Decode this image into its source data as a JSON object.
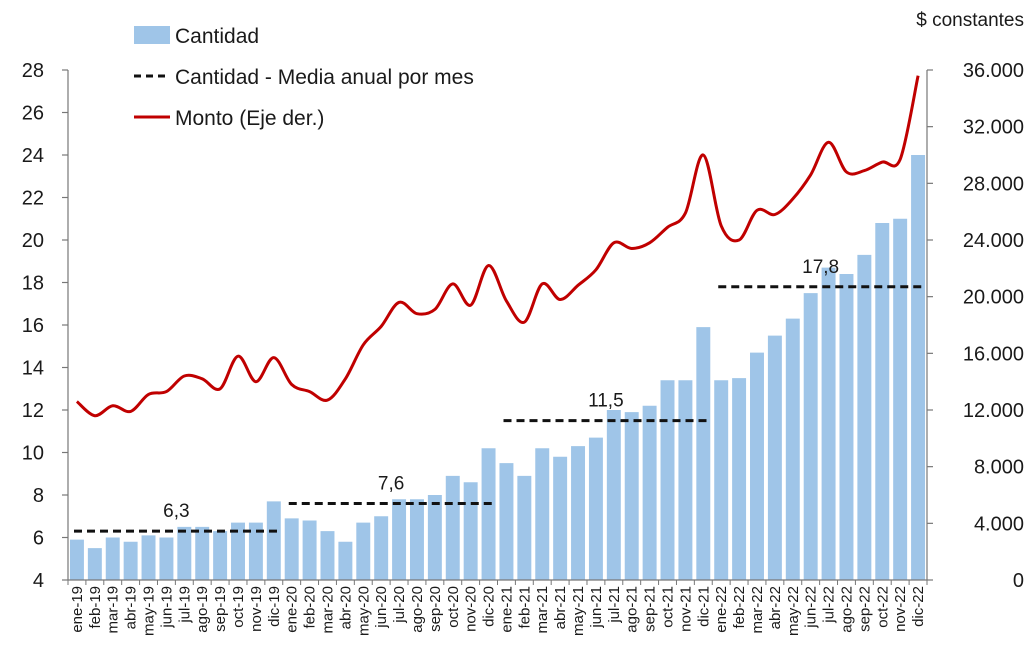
{
  "chart_data": {
    "type": "bar+line",
    "right_axis_title": "$ constantes",
    "legend": {
      "bars": "Cantidad",
      "dashed": "Cantidad - Media anual por mes",
      "line": "Monto (Eje der.)"
    },
    "colors": {
      "bars": "#9fc5e8",
      "line": "#c00000",
      "dashed": "#111111"
    },
    "left_axis": {
      "min": 4,
      "max": 28,
      "ticks": [
        "4",
        "6",
        "8",
        "10",
        "12",
        "14",
        "16",
        "18",
        "20",
        "22",
        "24",
        "26",
        "28"
      ],
      "tick_values": [
        4,
        6,
        8,
        10,
        12,
        14,
        16,
        18,
        20,
        22,
        24,
        26,
        28
      ]
    },
    "right_axis": {
      "min": 0,
      "max": 36000,
      "ticks": [
        "0",
        "4.000",
        "8.000",
        "12.000",
        "16.000",
        "20.000",
        "24.000",
        "28.000",
        "32.000",
        "36.000"
      ],
      "tick_values": [
        0,
        4000,
        8000,
        12000,
        16000,
        20000,
        24000,
        28000,
        32000,
        36000
      ]
    },
    "categories": [
      "ene-19",
      "feb-19",
      "mar-19",
      "abr-19",
      "may-19",
      "jun-19",
      "jul-19",
      "ago-19",
      "sep-19",
      "oct-19",
      "nov-19",
      "dic-19",
      "ene-20",
      "feb-20",
      "mar-20",
      "abr-20",
      "may-20",
      "jun-20",
      "jul-20",
      "ago-20",
      "sep-20",
      "oct-20",
      "nov-20",
      "dic-20",
      "ene-21",
      "feb-21",
      "mar-21",
      "abr-21",
      "may-21",
      "jun-21",
      "jul-21",
      "ago-21",
      "sep-21",
      "oct-21",
      "nov-21",
      "dic-21",
      "ene-22",
      "feb-22",
      "mar-22",
      "abr-22",
      "may-22",
      "jun-22",
      "jul-22",
      "ago-22",
      "sep-22",
      "oct-22",
      "nov-22",
      "dic-22"
    ],
    "series": [
      {
        "name": "Cantidad",
        "type": "bar",
        "axis": "left",
        "values": [
          5.9,
          5.5,
          6.0,
          5.8,
          6.1,
          6.0,
          6.5,
          6.5,
          6.3,
          6.7,
          6.7,
          7.7,
          6.9,
          6.8,
          6.3,
          5.8,
          6.7,
          7.0,
          7.8,
          7.8,
          8.0,
          8.9,
          8.6,
          10.2,
          9.5,
          8.9,
          10.2,
          9.8,
          10.3,
          10.7,
          12.0,
          11.9,
          12.2,
          13.4,
          13.4,
          15.9,
          13.4,
          13.5,
          14.7,
          15.5,
          16.3,
          17.5,
          18.7,
          18.4,
          19.3,
          20.8,
          21.0,
          24.0
        ]
      },
      {
        "name": "Monto (Eje der.)",
        "type": "line",
        "axis": "right",
        "values": [
          12600,
          11600,
          12300,
          11900,
          13100,
          13300,
          14400,
          14200,
          13500,
          15800,
          14000,
          15700,
          13800,
          13300,
          12700,
          14200,
          16600,
          17900,
          19600,
          18800,
          19100,
          20900,
          19400,
          22200,
          19700,
          18200,
          20900,
          19800,
          20800,
          21900,
          23800,
          23400,
          23800,
          24900,
          25900,
          30000,
          25000,
          24000,
          26100,
          25800,
          26900,
          28600,
          30900,
          28800,
          28900,
          29500,
          29700,
          35600
        ]
      }
    ],
    "annual_means": [
      {
        "year": "2019",
        "value": 6.3,
        "label": "6,3"
      },
      {
        "year": "2020",
        "value": 7.6,
        "label": "7,6"
      },
      {
        "year": "2021",
        "value": 11.5,
        "label": "11,5"
      },
      {
        "year": "2022",
        "value": 17.8,
        "label": "17,8"
      }
    ]
  }
}
